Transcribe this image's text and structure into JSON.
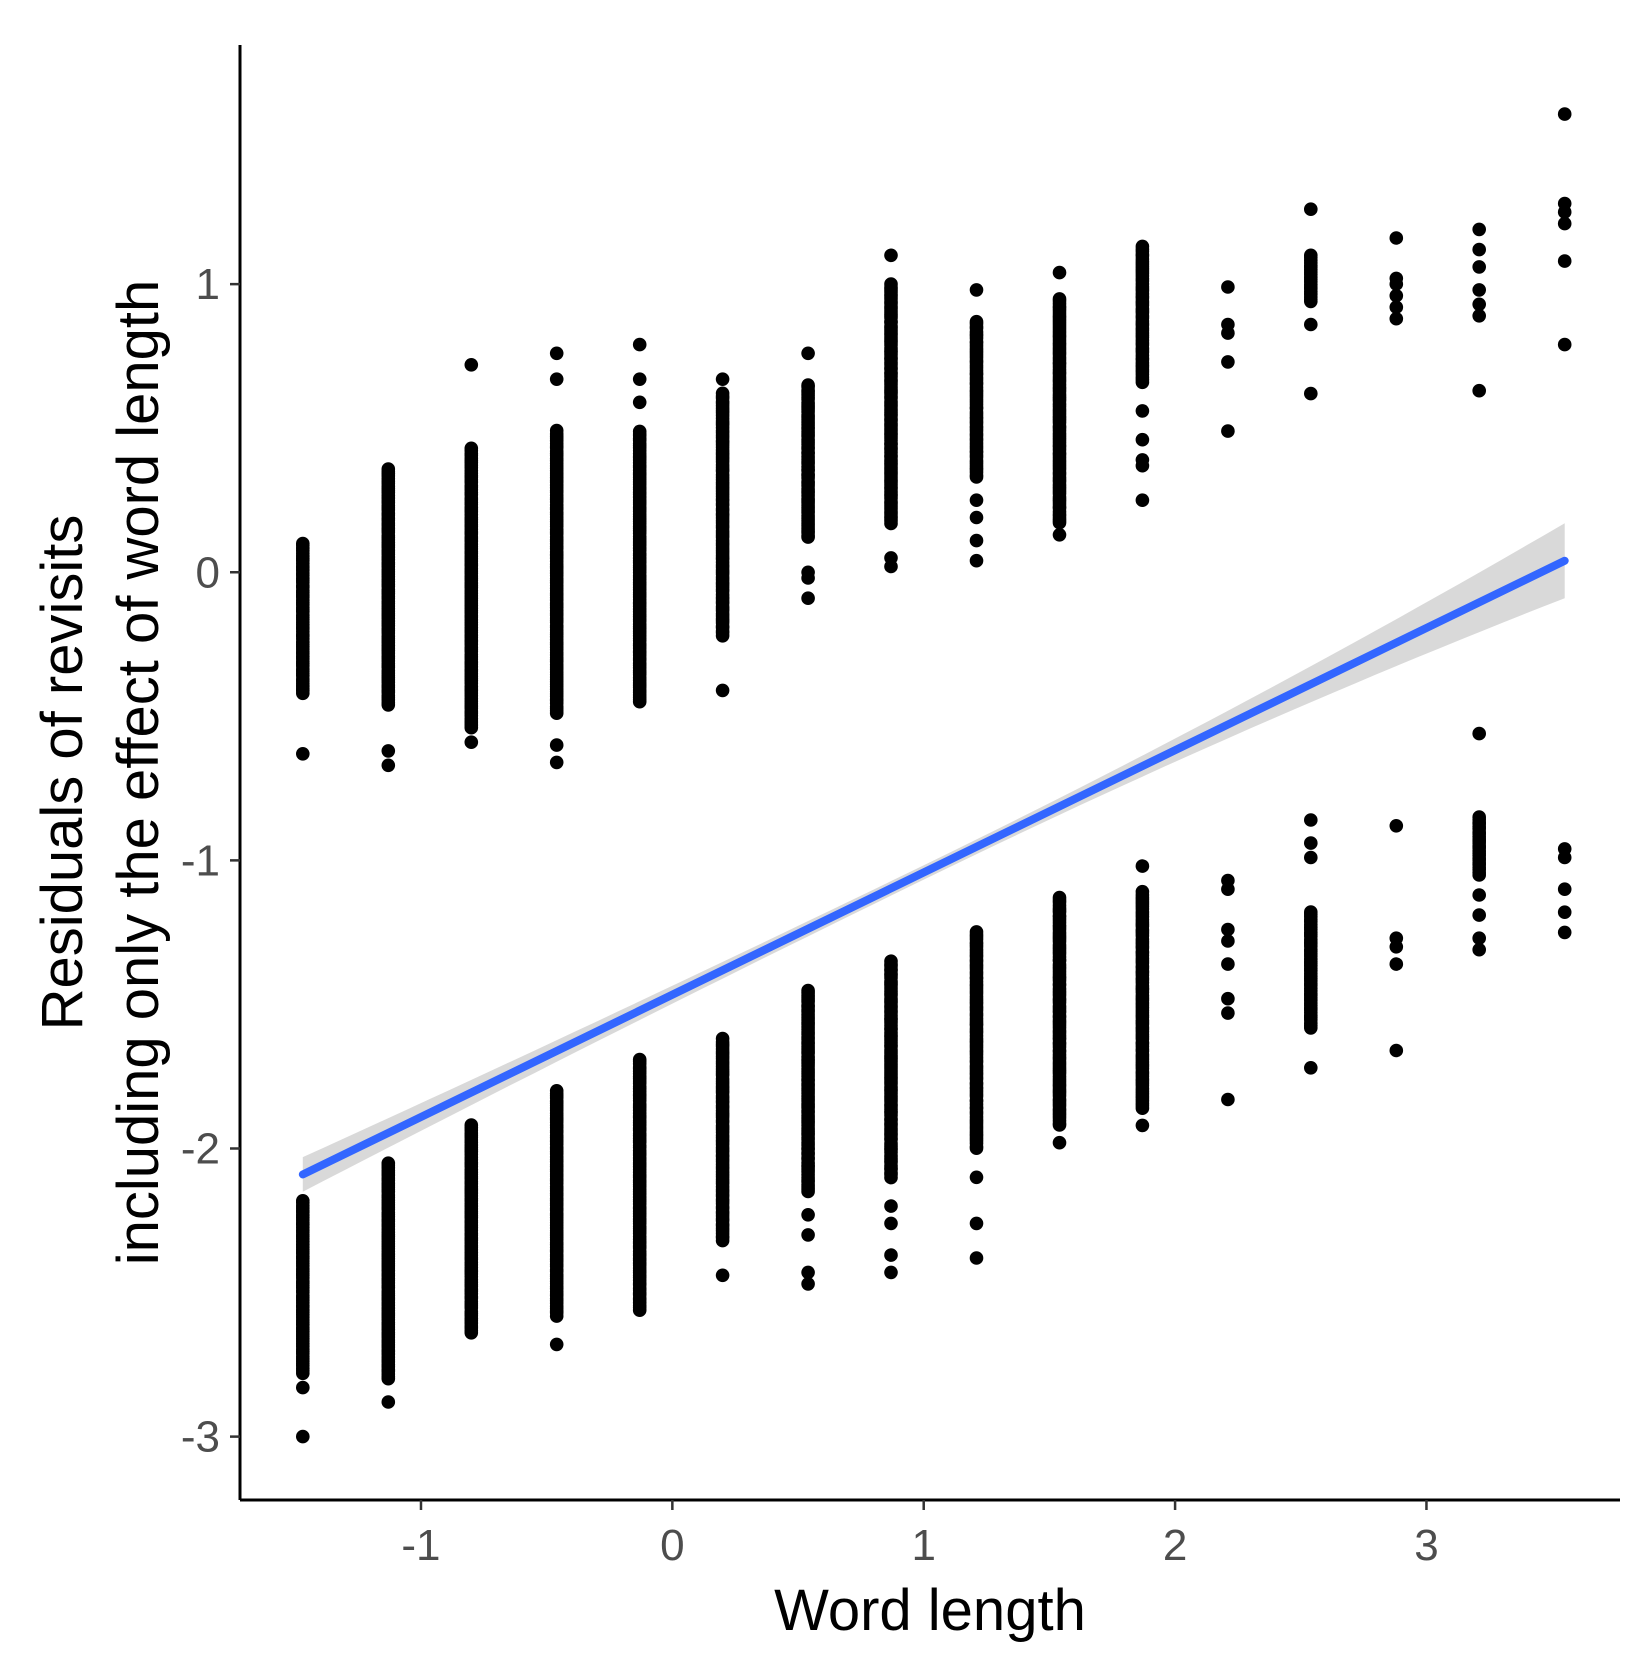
{
  "chart_data": {
    "type": "scatter",
    "title": "",
    "xlabel": "Word length",
    "ylabel_lines": [
      "Residuals of revisits",
      "including only the effect of word length"
    ],
    "xlim": [
      -1.72,
      3.77
    ],
    "ylim": [
      -3.22,
      1.83
    ],
    "x_ticks": [
      -1,
      0,
      1,
      2,
      3
    ],
    "x_tick_labels": [
      "-1",
      "0",
      "1",
      "2",
      "3"
    ],
    "y_ticks": [
      -3,
      -2,
      -1,
      0,
      1
    ],
    "y_tick_labels": [
      "-3",
      "-2",
      "-1",
      "0",
      "1"
    ],
    "grid": false,
    "legend": "none",
    "colors": {
      "points": "#000000",
      "fit_line": "#3366ff",
      "confidence_band": "#bfbfbf",
      "tick_text": "#4d4d4d",
      "axis_line": "#000000"
    },
    "fit": {
      "method": "linear",
      "x": [
        -1.47,
        3.55
      ],
      "y": [
        -2.09,
        0.04
      ],
      "ci_halfwidth_at_ends": [
        0.06,
        0.13
      ],
      "ci_halfwidth_at_center": 0.025
    },
    "groups": [
      {
        "x": -1.47,
        "upper_range": [
          -0.42,
          0.1
        ],
        "lower_range": [
          -2.78,
          -2.18
        ],
        "upper_extra": [
          -0.63
        ],
        "lower_extra": [
          -2.83,
          -3.0
        ]
      },
      {
        "x": -1.13,
        "upper_range": [
          -0.46,
          0.36
        ],
        "lower_range": [
          -2.8,
          -2.05
        ],
        "upper_extra": [
          -0.62,
          -0.67
        ],
        "lower_extra": [
          -2.88
        ]
      },
      {
        "x": -0.8,
        "upper_range": [
          -0.54,
          0.43
        ],
        "lower_range": [
          -2.64,
          -1.92
        ],
        "upper_extra": [
          0.72,
          -0.59
        ],
        "lower_extra": []
      },
      {
        "x": -0.46,
        "upper_range": [
          -0.49,
          0.49
        ],
        "lower_range": [
          -2.58,
          -1.8
        ],
        "upper_extra": [
          0.76,
          0.67,
          -0.6,
          -0.66
        ],
        "lower_extra": [
          -2.68
        ]
      },
      {
        "x": -0.13,
        "upper_range": [
          -0.45,
          0.49
        ],
        "lower_range": [
          -2.56,
          -1.69
        ],
        "upper_extra": [
          0.79,
          0.67,
          0.59
        ],
        "lower_extra": []
      },
      {
        "x": 0.2,
        "upper_range": [
          -0.22,
          0.62
        ],
        "lower_range": [
          -2.32,
          -1.62
        ],
        "upper_extra": [
          0.67,
          -0.41
        ],
        "lower_extra": [
          -2.44
        ]
      },
      {
        "x": 0.54,
        "upper_range": [
          0.12,
          0.65
        ],
        "lower_range": [
          -2.15,
          -1.45
        ],
        "upper_extra": [
          0.76,
          -0.09,
          0.0,
          -0.02
        ],
        "lower_extra": [
          -2.23,
          -2.3,
          -2.43,
          -2.47
        ]
      },
      {
        "x": 0.87,
        "upper_range": [
          0.17,
          1.0
        ],
        "lower_range": [
          -2.1,
          -1.35
        ],
        "upper_extra": [
          1.1,
          0.02,
          0.05
        ],
        "lower_extra": [
          -2.2,
          -2.26,
          -2.37,
          -2.43
        ]
      },
      {
        "x": 1.21,
        "upper_range": [
          0.33,
          0.87
        ],
        "lower_range": [
          -2.0,
          -1.25
        ],
        "upper_extra": [
          0.98,
          0.25,
          0.19,
          0.11,
          0.04
        ],
        "lower_extra": [
          -2.1,
          -2.26,
          -2.38
        ]
      },
      {
        "x": 1.54,
        "upper_range": [
          0.17,
          0.95
        ],
        "lower_range": [
          -1.92,
          -1.13
        ],
        "upper_extra": [
          1.04,
          0.13
        ],
        "lower_extra": [
          -1.98
        ]
      },
      {
        "x": 1.87,
        "upper_range": [
          0.66,
          1.13
        ],
        "lower_range": [
          -1.86,
          -1.11
        ],
        "upper_extra": [
          0.56,
          0.46,
          0.39,
          0.37,
          0.25,
          -1.02
        ],
        "lower_extra": [
          -1.92
        ]
      },
      {
        "x": 2.21,
        "upper_range": [],
        "lower_range": [],
        "upper_extra": [
          0.99,
          0.86,
          0.83,
          0.73,
          0.49
        ],
        "lower_extra": [
          -1.07,
          -1.1,
          -1.24,
          -1.28,
          -1.36,
          -1.48,
          -1.53,
          -1.83
        ]
      },
      {
        "x": 2.54,
        "upper_range": [
          0.94,
          1.1
        ],
        "lower_range": [
          -1.58,
          -1.18
        ],
        "upper_extra": [
          1.26,
          0.86,
          0.62
        ],
        "lower_extra": [
          -0.86,
          -0.94,
          -0.99,
          -1.72
        ]
      },
      {
        "x": 2.88,
        "upper_range": [],
        "lower_range": [],
        "upper_extra": [
          1.16,
          1.02,
          1.0,
          0.96,
          0.92,
          0.88
        ],
        "lower_extra": [
          -0.88,
          -1.27,
          -1.3,
          -1.36,
          -1.66
        ]
      },
      {
        "x": 3.21,
        "upper_range": [],
        "lower_range": [
          -1.05,
          -0.85
        ],
        "upper_extra": [
          1.19,
          1.12,
          1.06,
          0.98,
          0.93,
          0.89,
          0.63
        ],
        "lower_extra": [
          -0.56,
          -1.12,
          -1.19,
          -1.27,
          -1.31
        ]
      },
      {
        "x": 3.55,
        "upper_range": [],
        "lower_range": [],
        "upper_extra": [
          1.59,
          1.28,
          1.25,
          1.21,
          1.08,
          0.79
        ],
        "lower_extra": [
          -0.96,
          -0.99,
          -1.1,
          -1.18,
          -1.25
        ]
      }
    ]
  }
}
